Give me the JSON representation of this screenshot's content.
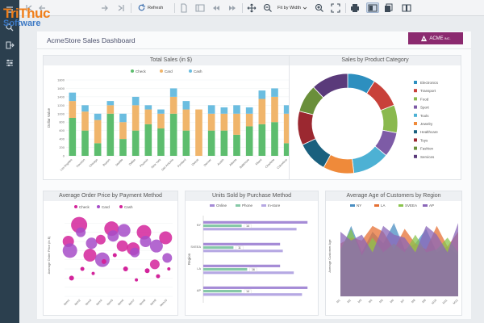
{
  "logo": {
    "line1": "TriThuc",
    "line2": "Software"
  },
  "toolbar": {
    "refresh_label": "Refresh",
    "fit_label": "Fit by Width"
  },
  "dashboard": {
    "title": "AcmeStore Sales Dashboard",
    "brand": "ACME",
    "brand_suffix": "INC."
  },
  "colors": {
    "check": "#5dbd6e",
    "card": "#f0b56b",
    "cash": "#6bbde0",
    "bubble_magenta": "#d3249b",
    "bubble_purple": "#a64cc8",
    "bar_online": "#a58bd6",
    "bar_phone": "#86c8a7",
    "bar_instore": "#b6a8e3",
    "area_ny": "#4a8ec2",
    "area_la": "#e57034",
    "area_sveea": "#8ac44e",
    "area_ap": "#8a66b8"
  },
  "chart_data": [
    {
      "type": "bar",
      "title": "Total Sales (in $)",
      "ylabel": "Dollar Value",
      "legend": [
        "Check",
        "Card",
        "Cash"
      ],
      "ylim": [
        0,
        1800
      ],
      "yticks": [
        0,
        200,
        400,
        600,
        800,
        1000,
        1200,
        1400,
        1600,
        1800
      ],
      "categories": [
        "Los Angeles",
        "Houston",
        "Chicago",
        "Boston",
        "Seattle",
        "Dallas",
        "Phoenix",
        "New York",
        "San Antonio",
        "Portland",
        "Detroit",
        "Denver",
        "Austin",
        "Atlanta",
        "Baltimore",
        "Miami",
        "Charlotte",
        "Columbus"
      ],
      "series": [
        {
          "name": "Check",
          "values": [
            900,
            600,
            300,
            1000,
            400,
            600,
            750,
            650,
            1000,
            600,
            0,
            600,
            600,
            500,
            700,
            750,
            800,
            300
          ]
        },
        {
          "name": "Card",
          "values": [
            400,
            450,
            550,
            200,
            400,
            600,
            350,
            350,
            400,
            500,
            1100,
            400,
            400,
            500,
            300,
            600,
            600,
            700
          ]
        },
        {
          "name": "Cash",
          "values": [
            200,
            150,
            150,
            100,
            200,
            200,
            100,
            100,
            200,
            200,
            0,
            200,
            150,
            200,
            150,
            200,
            200,
            200
          ]
        }
      ]
    },
    {
      "type": "pie",
      "title": "Sales by Product Category",
      "donut": true,
      "categories": [
        "Electronics",
        "Transport",
        "Food",
        "Sport",
        "Tools",
        "Jewelry",
        "Healthcare",
        "Toys",
        "Fashion",
        "Services"
      ],
      "values": [
        9,
        10,
        9,
        8,
        12,
        10,
        10,
        11,
        9,
        12
      ],
      "colors": [
        "#2d8fbf",
        "#c8413a",
        "#8ab94e",
        "#7d5ba6",
        "#4db1d4",
        "#ef8a3a",
        "#1a607e",
        "#9b2830",
        "#6a8f3a",
        "#5a3a7a"
      ]
    },
    {
      "type": "scatter",
      "title": "Average Order Price by Payment Method",
      "ylabel": "Average Order Price (in $)",
      "legend": [
        "Check",
        "Card",
        "Cash"
      ],
      "categories": [
        "Item1",
        "Item2",
        "Item3",
        "Item4",
        "Item5",
        "Item6",
        "Item7",
        "Item8",
        "Item9",
        "Item10"
      ],
      "series": [
        {
          "name": "Check",
          "values": [
            60,
            78,
            45,
            62,
            74,
            55,
            52,
            70,
            35,
            64
          ]
        },
        {
          "name": "Card",
          "values": [
            50,
            70,
            58,
            40,
            66,
            72,
            48,
            60,
            55,
            42
          ]
        },
        {
          "name": "Cash",
          "values": [
            20,
            30,
            25,
            38,
            45,
            30,
            18,
            28,
            22,
            30
          ]
        }
      ]
    },
    {
      "type": "bar",
      "title": "Units Sold by Purchase Method",
      "orientation": "horizontal",
      "ylabel": "Region",
      "legend": [
        "Online",
        "Phone",
        "In-store"
      ],
      "categories": [
        "NY",
        "SVEEA",
        "LA",
        "AP"
      ],
      "series": [
        {
          "name": "Online",
          "values": [
            38,
            28,
            28,
            38
          ]
        },
        {
          "name": "Phone",
          "values": [
            14,
            11,
            16,
            14
          ]
        },
        {
          "name": "In-store",
          "values": [
            34,
            29,
            33,
            36
          ]
        }
      ],
      "labels": [
        "14",
        "11",
        "16",
        "14"
      ]
    },
    {
      "type": "area",
      "title": "Average Age of Customers by Region",
      "ylabel": "Average Customer Age",
      "legend": [
        "NY",
        "LA",
        "SVEEA",
        "AP"
      ],
      "categories": [
        "M1",
        "M2",
        "M3",
        "M4",
        "M5",
        "M6",
        "M7",
        "M8",
        "M9",
        "M10",
        "M11",
        "M12"
      ],
      "series": [
        {
          "name": "NY",
          "values": [
            30,
            48,
            30,
            44,
            36,
            50,
            32,
            36,
            46,
            30,
            34,
            28
          ]
        },
        {
          "name": "LA",
          "values": [
            36,
            40,
            38,
            48,
            44,
            32,
            46,
            36,
            32,
            48,
            34,
            44
          ]
        },
        {
          "name": "SVEEA",
          "values": [
            32,
            46,
            28,
            40,
            30,
            36,
            30,
            42,
            30,
            32,
            40,
            30
          ]
        },
        {
          "name": "AP",
          "values": [
            44,
            38,
            42,
            30,
            48,
            42,
            40,
            30,
            48,
            42,
            30,
            50
          ]
        }
      ]
    }
  ]
}
